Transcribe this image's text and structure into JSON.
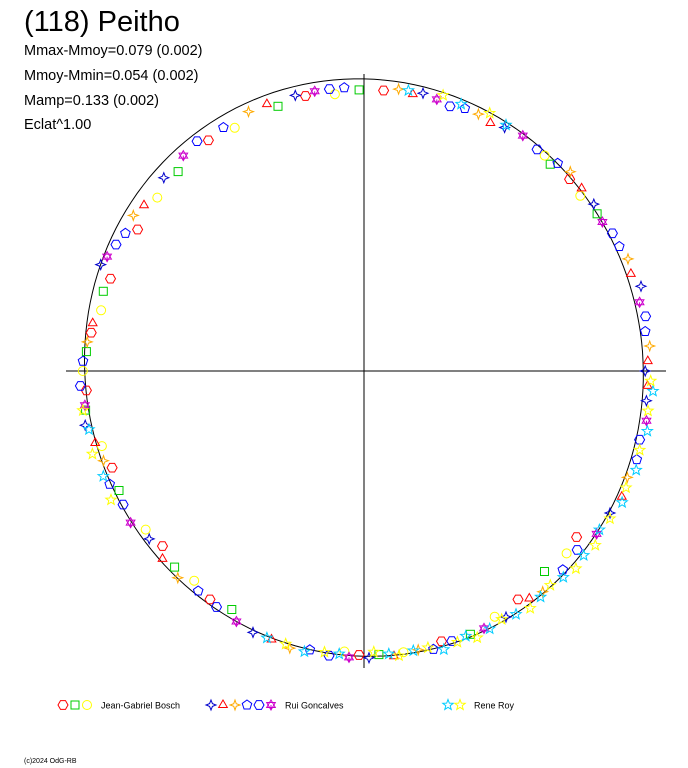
{
  "title": "(118) Peitho",
  "stats": [
    "Mmax-Mmoy=0.079 (0.002)",
    "Mmoy-Mmin=0.054 (0.002)",
    "Mamp=0.133 (0.002)",
    "Eclat^1.00"
  ],
  "copyright": "(c)2024 OdG-RB",
  "chart_data": {
    "type": "scatter",
    "projection": "polar",
    "title": "(118) Peitho",
    "axes": "crosshair through center",
    "reference_curve": "closed model curve",
    "legend_placement": "bottom",
    "series": [
      {
        "name": "Jean-Gabriel Bosch",
        "markers": [
          "hexagon",
          "square",
          "circle"
        ],
        "colors": [
          "#ff0000",
          "#00cc00",
          "#ffff00"
        ],
        "points": [
          [
            160,
            0.95
          ],
          [
            163,
            0.96
          ],
          [
            167,
            0.95
          ],
          [
            172,
            0.97
          ],
          [
            176,
            0.98
          ],
          [
            180,
            0.99
          ],
          [
            184,
            0.98
          ],
          [
            188,
            0.99
          ],
          [
            196,
            0.96
          ],
          [
            201,
            0.95
          ],
          [
            206,
            0.96
          ],
          [
            216,
            0.95
          ],
          [
            221,
            0.94
          ],
          [
            226,
            0.96
          ],
          [
            231,
            0.95
          ],
          [
            236,
            0.97
          ],
          [
            241,
            0.96
          ],
          [
            266,
            0.99
          ],
          [
            269,
            1.0
          ],
          [
            273,
            1.0
          ],
          [
            278,
            1.0
          ],
          [
            286,
            0.99
          ],
          [
            292,
            1.0
          ],
          [
            298,
            0.98
          ],
          [
            304,
            0.97
          ],
          [
            312,
            0.95
          ],
          [
            318,
            0.96
          ],
          [
            322,
            0.95
          ],
          [
            34,
            0.99
          ],
          [
            39,
            0.98
          ],
          [
            43,
            0.99
          ],
          [
            48,
            0.98
          ],
          [
            50,
            0.99
          ],
          [
            86,
            0.99
          ],
          [
            91,
            0.99
          ],
          [
            96,
            0.98
          ],
          [
            102,
            0.99
          ],
          [
            108,
            0.98
          ],
          [
            118,
            0.97
          ],
          [
            124,
            0.98
          ],
          [
            133,
            0.96
          ],
          [
            140,
            0.95
          ],
          [
            148,
            0.94
          ]
        ]
      },
      {
        "name": "Rui Goncalves",
        "markers": [
          "star4",
          "triangle",
          "diamond-star",
          "pentagon",
          "hexagon",
          "star6"
        ],
        "colors": [
          "#0000cc",
          "#ff0000",
          "#ffaa00",
          "#0000ff",
          "#0000ff",
          "#cc00cc"
        ],
        "points": [
          [
            0,
            0.99
          ],
          [
            2,
            1.0
          ],
          [
            5,
            1.01
          ],
          [
            8,
            1.0
          ],
          [
            11,
            1.01
          ],
          [
            14,
            1.0
          ],
          [
            17,
            1.02
          ],
          [
            20,
            1.0
          ],
          [
            23,
            1.01
          ],
          [
            26,
            1.0
          ],
          [
            29,
            1.0
          ],
          [
            32,
            0.99
          ],
          [
            36,
            1.0
          ],
          [
            40,
            1.0
          ],
          [
            44,
            1.01
          ],
          [
            47,
            1.0
          ],
          [
            52,
            0.99
          ],
          [
            56,
            1.0
          ],
          [
            60,
            0.99
          ],
          [
            63,
            0.98
          ],
          [
            66,
            0.99
          ],
          [
            69,
            0.99
          ],
          [
            72,
            0.98
          ],
          [
            75,
            0.99
          ],
          [
            78,
            1.0
          ],
          [
            80,
            0.99
          ],
          [
            83,
            1.0
          ],
          [
            94,
            1.0
          ],
          [
            97,
            1.0
          ],
          [
            100,
            1.0
          ],
          [
            104,
            1.0
          ],
          [
            110,
            1.0
          ],
          [
            114,
            1.0
          ],
          [
            120,
            0.99
          ],
          [
            126,
            1.0
          ],
          [
            130,
            0.99
          ],
          [
            136,
            0.98
          ],
          [
            143,
            0.97
          ],
          [
            146,
            0.98
          ],
          [
            150,
            0.97
          ],
          [
            153,
            0.98
          ],
          [
            156,
            0.99
          ],
          [
            158,
            1.0
          ],
          [
            170,
            0.97
          ],
          [
            174,
            0.98
          ],
          [
            178,
            0.99
          ],
          [
            183,
            1.0
          ],
          [
            187,
            0.99
          ],
          [
            191,
            1.0
          ],
          [
            195,
            0.98
          ],
          [
            199,
            0.97
          ],
          [
            204,
            0.98
          ],
          [
            209,
            0.97
          ],
          [
            213,
            0.98
          ],
          [
            218,
            0.96
          ],
          [
            223,
            0.97
          ],
          [
            228,
            0.98
          ],
          [
            233,
            0.97
          ],
          [
            238,
            0.98
          ],
          [
            243,
            0.99
          ],
          [
            247,
            1.0
          ],
          [
            251,
            1.0
          ],
          [
            255,
            1.01
          ],
          [
            259,
            1.0
          ],
          [
            263,
            1.01
          ],
          [
            267,
            1.01
          ],
          [
            271,
            1.01
          ],
          [
            276,
            1.01
          ],
          [
            281,
            1.0
          ],
          [
            284,
            1.01
          ],
          [
            288,
            1.0
          ],
          [
            295,
            1.0
          ],
          [
            300,
            1.0
          ],
          [
            306,
            0.99
          ],
          [
            309,
            1.0
          ],
          [
            315,
            0.99
          ],
          [
            320,
            0.98
          ],
          [
            325,
            1.0
          ],
          [
            330,
            1.0
          ],
          [
            334,
            1.01
          ],
          [
            338,
            1.0
          ],
          [
            342,
            1.01
          ],
          [
            346,
            1.0
          ],
          [
            350,
            1.01
          ],
          [
            354,
            1.0
          ],
          [
            357,
            1.0
          ]
        ]
      },
      {
        "name": "Rene Roy",
        "markers": [
          "star5",
          "star5"
        ],
        "colors": [
          "#00ccff",
          "#ffff00"
        ],
        "points": [
          [
            60,
            1.0
          ],
          [
            64,
            1.01
          ],
          [
            70,
            1.0
          ],
          [
            74,
            1.01
          ],
          [
            81,
            1.0
          ],
          [
            188,
            1.0
          ],
          [
            192,
            0.99
          ],
          [
            197,
            1.0
          ],
          [
            202,
            0.99
          ],
          [
            207,
            1.0
          ],
          [
            250,
            1.0
          ],
          [
            254,
            1.0
          ],
          [
            258,
            1.01
          ],
          [
            262,
            1.0
          ],
          [
            265,
            1.0
          ],
          [
            272,
            0.99
          ],
          [
            275,
            1.0
          ],
          [
            277,
            1.01
          ],
          [
            280,
            1.0
          ],
          [
            283,
            1.0
          ],
          [
            286,
            1.02
          ],
          [
            289,
            1.01
          ],
          [
            291,
            1.0
          ],
          [
            293,
            1.02
          ],
          [
            296,
            1.01
          ],
          [
            299,
            1.0
          ],
          [
            302,
            1.01
          ],
          [
            305,
            1.02
          ],
          [
            308,
            1.01
          ],
          [
            311,
            1.0
          ],
          [
            314,
            1.01
          ],
          [
            317,
            1.02
          ],
          [
            320,
            1.01
          ],
          [
            323,
            1.02
          ],
          [
            326,
            1.0
          ],
          [
            329,
            1.01
          ],
          [
            333,
            1.02
          ],
          [
            336,
            1.01
          ],
          [
            340,
            1.02
          ],
          [
            344,
            1.01
          ],
          [
            348,
            1.02
          ],
          [
            352,
            1.01
          ],
          [
            356,
            1.02
          ],
          [
            358,
            1.01
          ]
        ]
      }
    ]
  }
}
